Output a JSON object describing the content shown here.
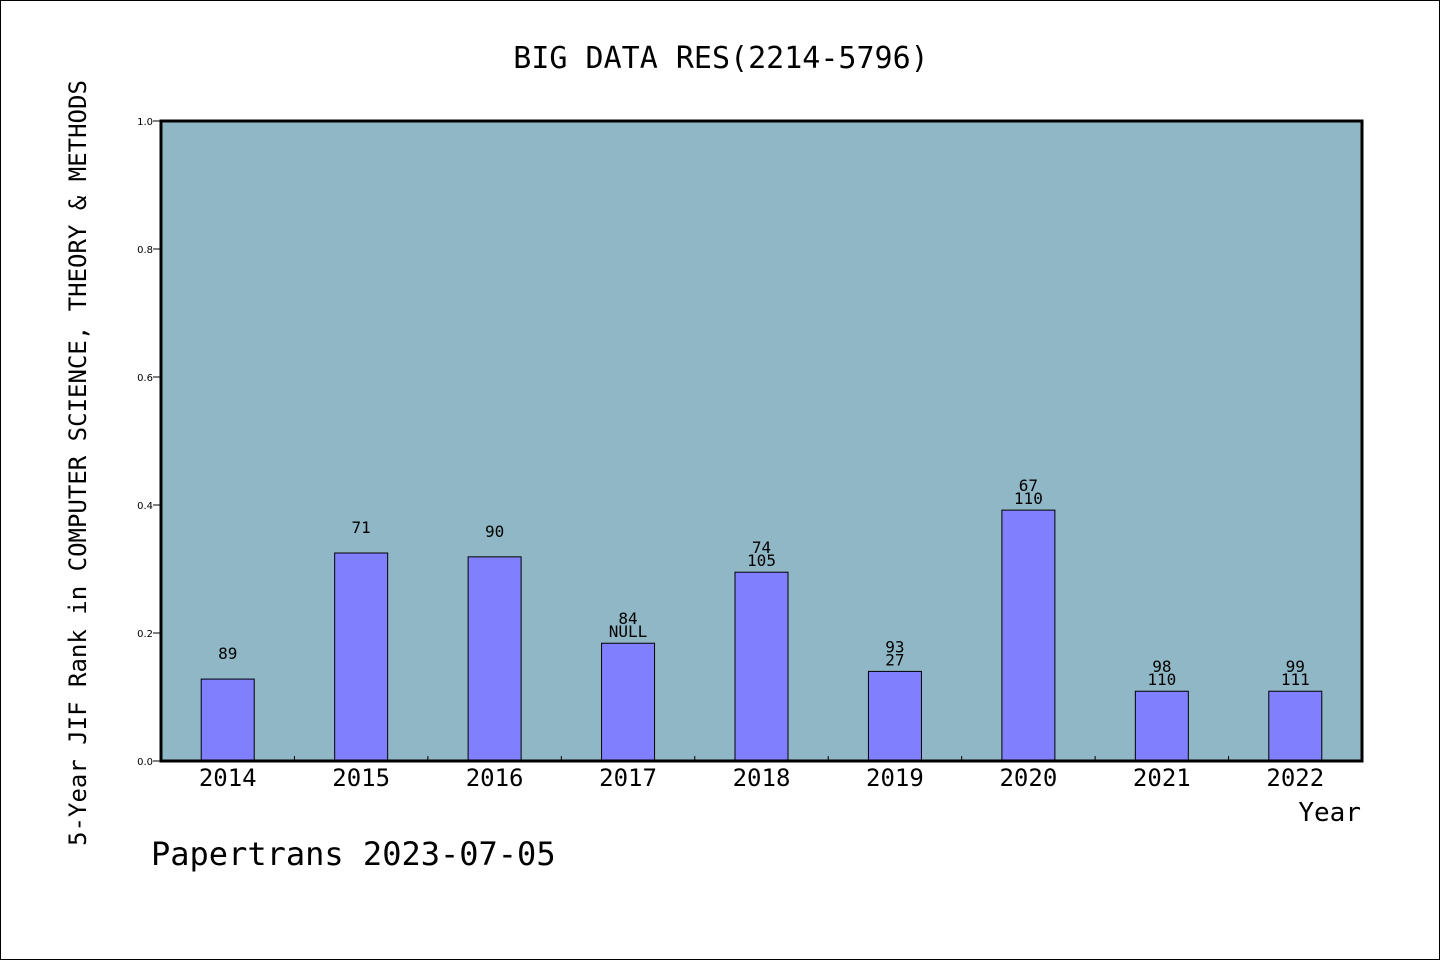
{
  "chart_data": {
    "type": "bar",
    "title": "BIG DATA RES(2214-5796)",
    "xlabel": "Year",
    "ylabel": "5-Year JIF Rank in COMPUTER SCIENCE, THEORY & METHODS",
    "ylim": [
      0,
      1.0
    ],
    "yticks": [
      "0.0",
      "0.2",
      "0.4",
      "0.6",
      "0.8",
      "1.0"
    ],
    "categories": [
      "2014",
      "2015",
      "2016",
      "2017",
      "2018",
      "2019",
      "2020",
      "2021",
      "2022"
    ],
    "values": [
      0.128,
      0.325,
      0.319,
      0.184,
      0.295,
      0.14,
      0.392,
      0.109,
      0.109
    ],
    "labels_top": [
      "89",
      "71",
      "90",
      "84",
      "74",
      "93",
      "67",
      "98",
      "99"
    ],
    "labels_bottom": [
      "",
      "",
      "",
      "NULL",
      "105",
      "27",
      "110",
      "110",
      "111"
    ],
    "grid": false,
    "plot_background": "#8fb7c5",
    "bar_color": "#8080ff"
  },
  "footer": {
    "source": "Papertrans 2023-07-05"
  }
}
